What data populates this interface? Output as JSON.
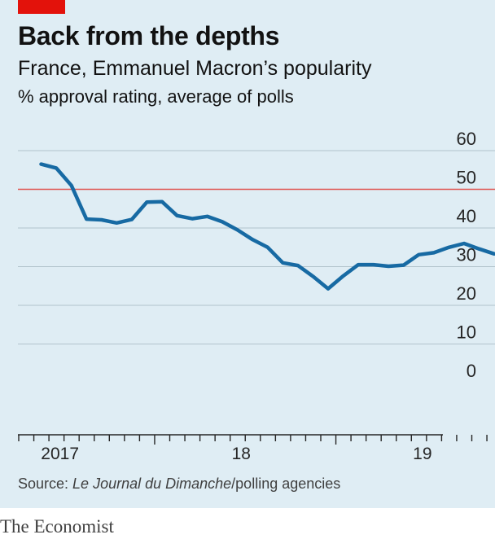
{
  "header": {
    "title": "Back from the depths",
    "subtitle": "France, Emmanuel Macron’s popularity",
    "unit": "% approval rating, average of polls"
  },
  "footer": {
    "source_prefix": "Source: ",
    "source_italic": "Le Journal du Dimanche",
    "source_suffix": "/polling agencies",
    "brand": "The Economist"
  },
  "colors": {
    "background": "#dfedf4",
    "line": "#176aa3",
    "reference": "#e0534f",
    "grid": "#b2c3cc",
    "accent": "#e3120b"
  },
  "chart_data": {
    "type": "line",
    "title": "Back from the depths",
    "subtitle": "France, Emmanuel Macron’s popularity",
    "ylabel": "% approval rating, average of polls",
    "ylim": [
      0,
      60
    ],
    "yticks": [
      0,
      10,
      20,
      30,
      40,
      50,
      60
    ],
    "y_axis_side": "right",
    "grid": true,
    "reference_line": 50,
    "xlim": [
      "2017-05",
      "2019-09"
    ],
    "xticks": [
      {
        "date": "2017-07",
        "label": "2017"
      },
      {
        "date": "2018-07",
        "label": "18"
      },
      {
        "date": "2019-07",
        "label": "19"
      }
    ],
    "series": [
      {
        "x": [
          "2017-05",
          "2017-06",
          "2017-07",
          "2017-08",
          "2017-09",
          "2017-10",
          "2017-11",
          "2017-12",
          "2018-01",
          "2018-02",
          "2018-03",
          "2018-04",
          "2018-05",
          "2018-06",
          "2018-07",
          "2018-08",
          "2018-09",
          "2018-10",
          "2018-11",
          "2018-12",
          "2019-01",
          "2019-02",
          "2019-03",
          "2019-04",
          "2019-05",
          "2019-06",
          "2019-07",
          "2019-08",
          "2019-09"
        ],
        "values": [
          56.5,
          55.5,
          51,
          42.3,
          42.1,
          41.3,
          42.2,
          46.7,
          46.8,
          43.2,
          42.4,
          43,
          41.6,
          39.5,
          37,
          35,
          31,
          30.3,
          27.5,
          24.3,
          27.6,
          30.5,
          30.5,
          30.1,
          30.4,
          33.1,
          33.6,
          35,
          36
        ]
      }
    ],
    "series_tail": {
      "x": [
        "2019-10",
        "2019-11"
      ],
      "values": [
        34.6,
        33.3
      ]
    }
  }
}
